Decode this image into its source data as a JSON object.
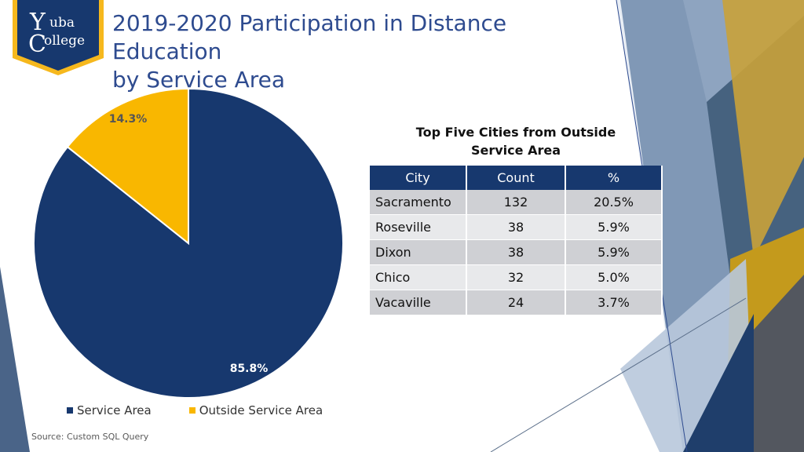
{
  "logo": {
    "line1": "uba",
    "line2": "ollege",
    "initial1": "Y",
    "initial2": "C",
    "shield_color": "#f6b81d",
    "inner_color": "#17386e"
  },
  "title": {
    "line1": "2019-2020 Participation in Distance Education",
    "line2": "by Service Area"
  },
  "chart_data": {
    "type": "pie",
    "slices": [
      {
        "name": "Service Area",
        "value": 85.8,
        "label": "85.8%",
        "color": "#17386e"
      },
      {
        "name": "Outside Service Area",
        "value": 14.3,
        "label": "14.3%",
        "color": "#f9b700"
      }
    ],
    "legend_position": "bottom"
  },
  "legend": [
    "Service Area",
    "Outside Service Area"
  ],
  "table": {
    "title_line1": "Top Five Cities from Outside",
    "title_line2": "Service Area",
    "headers": [
      "City",
      "Count",
      "%"
    ],
    "rows": [
      [
        "Sacramento",
        "132",
        "20.5%"
      ],
      [
        "Roseville",
        "38",
        "5.9%"
      ],
      [
        "Dixon",
        "38",
        "5.9%"
      ],
      [
        "Chico",
        "32",
        "5.0%"
      ],
      [
        "Vacaville",
        "24",
        "3.7%"
      ]
    ]
  },
  "source": "Source: Custom SQL Query",
  "colors": {
    "accent_blue": "#17386e",
    "accent_gold": "#f9b700",
    "title_blue": "#2e4b8f"
  }
}
